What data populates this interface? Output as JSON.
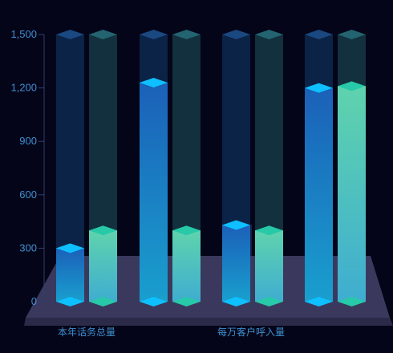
{
  "chart_data": {
    "type": "bar",
    "style": "3d-cylinder-bars-on-platform",
    "y_ticks": [
      "0",
      "300",
      "600",
      "900",
      "1,200",
      "1,500"
    ],
    "ylim": [
      0,
      1500
    ],
    "category_labels": [
      "本年话务总量",
      "每万客户呼入量"
    ],
    "groups": [
      {
        "values": [
          300,
          400
        ]
      },
      {
        "values": [
          1230,
          400
        ]
      },
      {
        "values": [
          430,
          400
        ]
      },
      {
        "values": [
          1200,
          1210
        ]
      }
    ],
    "series_colors": {
      "blue": {
        "top": "#1573c8",
        "bottom": "#1796cc",
        "cap": "#0ec0ff",
        "track": "#0b2346",
        "track_cap": "#1a4880"
      },
      "teal": {
        "top": "#5dd1b0",
        "bottom": "#43b1cc",
        "cap": "#27c9a8",
        "track": "#12303e",
        "track_cap": "#236470"
      }
    },
    "platform_color": "#3c3a5e",
    "grid": false
  }
}
